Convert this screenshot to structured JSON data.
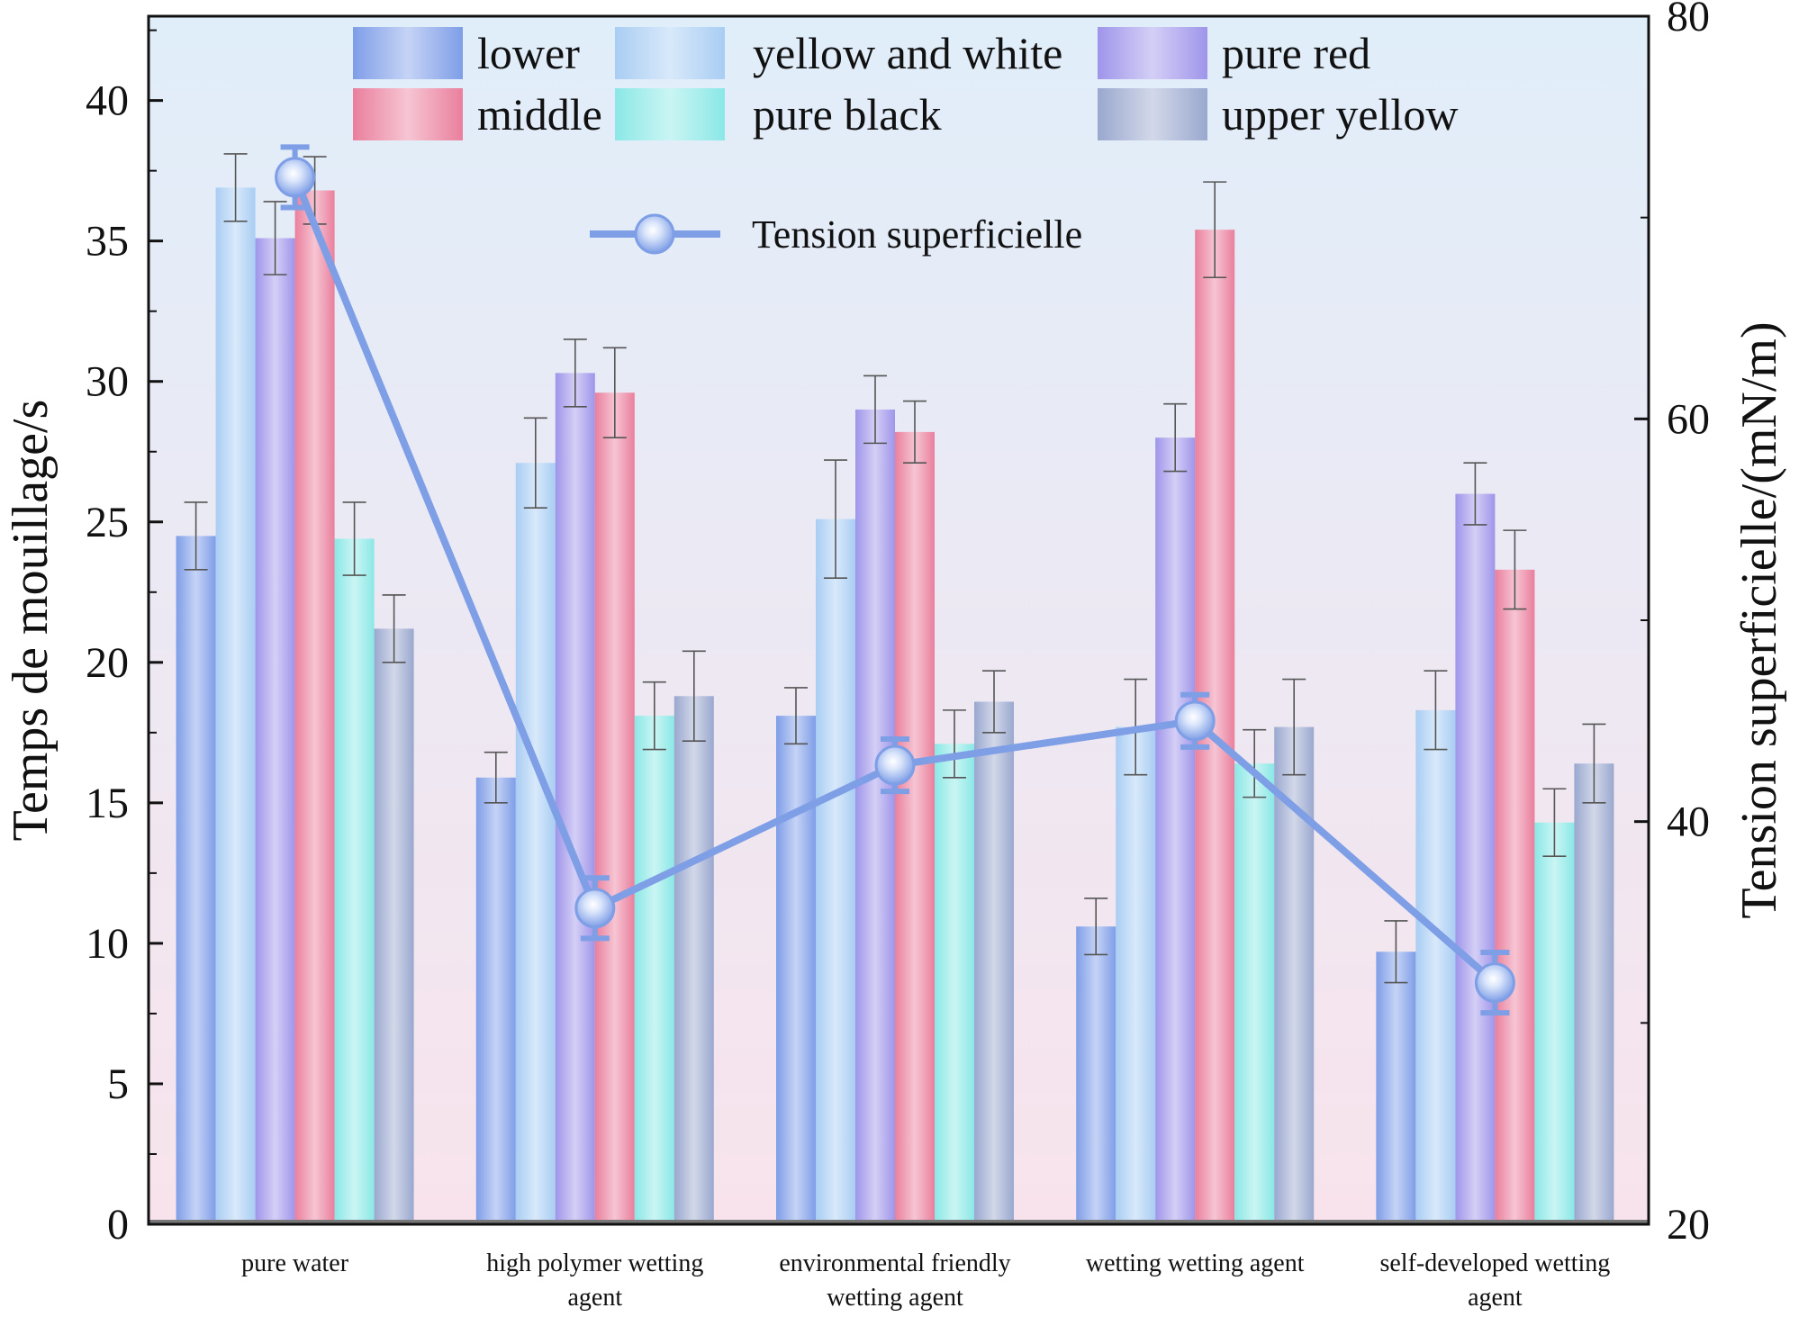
{
  "chart_data": {
    "type": "bar",
    "title": "",
    "xlabel": "",
    "ylabel": "Temps de mouillage/s",
    "y2label": "Tension superficielle/(mN/m)",
    "ylim": [
      0,
      43
    ],
    "y2lim": [
      20,
      80
    ],
    "yticks": [
      "0",
      "5",
      "10",
      "15",
      "20",
      "25",
      "30",
      "35",
      "40"
    ],
    "y2ticks": [
      "20",
      "40",
      "60",
      "80"
    ],
    "categories": [
      [
        "pure water"
      ],
      [
        "high polymer wetting",
        "agent"
      ],
      [
        "environmental friendly",
        "wetting agent"
      ],
      [
        "wetting wetting agent"
      ],
      [
        "self-developed wetting",
        "agent"
      ]
    ],
    "series": [
      {
        "name": "lower",
        "values": [
          24.5,
          15.9,
          18.1,
          10.6,
          9.7
        ],
        "errors": [
          1.2,
          0.9,
          1.0,
          1.0,
          1.1
        ],
        "color": "#7f9ee8"
      },
      {
        "name": "yellow and white",
        "values": [
          36.9,
          27.1,
          25.1,
          17.7,
          18.3
        ],
        "errors": [
          1.2,
          1.6,
          2.1,
          1.7,
          1.4
        ],
        "color": "#a9cdf3"
      },
      {
        "name": "pure red",
        "values": [
          35.1,
          30.3,
          29.0,
          28.0,
          26.0
        ],
        "errors": [
          1.3,
          1.2,
          1.2,
          1.2,
          1.1
        ],
        "color": "#9f95ea"
      },
      {
        "name": "middle",
        "values": [
          36.8,
          29.6,
          28.2,
          35.4,
          23.3
        ],
        "errors": [
          1.2,
          1.6,
          1.1,
          1.7,
          1.4
        ],
        "color": "#ea7f9d"
      },
      {
        "name": "pure black",
        "values": [
          24.4,
          18.1,
          17.1,
          16.4,
          14.3
        ],
        "errors": [
          1.3,
          1.2,
          1.2,
          1.2,
          1.2
        ],
        "color": "#8ae8e6"
      },
      {
        "name": "upper yellow",
        "values": [
          21.2,
          18.8,
          18.6,
          17.7,
          16.4
        ],
        "errors": [
          1.2,
          1.6,
          1.1,
          1.7,
          1.4
        ],
        "color": "#9aa8cf"
      }
    ],
    "line_series": {
      "name": "Tension superficielle",
      "axis": "right",
      "values": [
        72.0,
        35.7,
        42.8,
        45.0,
        32.0
      ],
      "errors": [
        1.5,
        1.5,
        1.3,
        1.3,
        1.5
      ],
      "color": "#7e9ee6"
    },
    "legend": "top",
    "grid": false
  }
}
